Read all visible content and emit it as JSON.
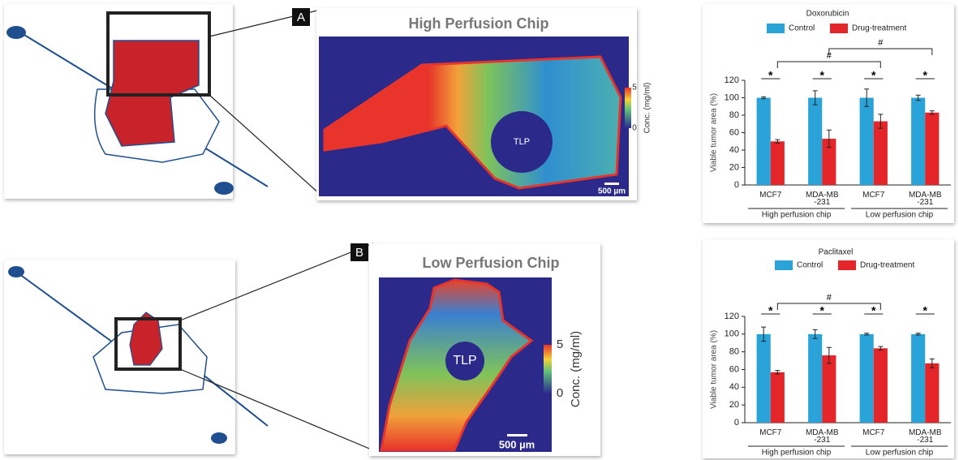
{
  "panels": [
    {
      "label": "A",
      "title": "High Perfusion Chip",
      "tlp": "TLP",
      "colorbar_ticks": [
        0,
        5
      ],
      "colorbar_label": "Conc. (mg/ml)",
      "scale": "500 µm"
    },
    {
      "label": "B",
      "title": "Low Perfusion Chip",
      "tlp": "TLP",
      "colorbar_ticks": [
        0,
        5
      ],
      "colorbar_label": "Conc. (mg/ml)",
      "scale": "500 µm"
    }
  ],
  "chart_data": [
    {
      "type": "bar",
      "title": "Doxorubicin",
      "ylabel": "Viable tumor area (%)",
      "categories": [
        "MCF7",
        "MDA-MB\n-231",
        "MCF7",
        "MDA-MB\n-231"
      ],
      "groups": [
        "High perfusion chip",
        "Low perfusion chip"
      ],
      "series": [
        {
          "name": "Control",
          "color": "#2aa3d8",
          "values": [
            100,
            100,
            100,
            100
          ],
          "errors": [
            1,
            8,
            10,
            3
          ]
        },
        {
          "name": "Drug-treatment",
          "color": "#e4262b",
          "values": [
            50,
            53,
            73,
            83
          ],
          "errors": [
            2,
            10,
            8,
            2
          ]
        }
      ],
      "annotations": [
        "*",
        "*",
        "*",
        "*",
        "#",
        "#"
      ],
      "ylim": [
        0,
        120
      ],
      "yticks": [
        0,
        20,
        40,
        60,
        80,
        100,
        120
      ]
    },
    {
      "type": "bar",
      "title": "Paclitaxel",
      "ylabel": "Viable tumor area (%)",
      "categories": [
        "MCF7",
        "MDA-MB\n-231",
        "MCF7",
        "MDA-MB\n-231"
      ],
      "groups": [
        "High perfusion chip",
        "Low perfusion chip"
      ],
      "series": [
        {
          "name": "Control",
          "color": "#2aa3d8",
          "values": [
            100,
            100,
            100,
            100
          ],
          "errors": [
            8,
            5,
            1,
            1
          ]
        },
        {
          "name": "Drug-treatment",
          "color": "#e4262b",
          "values": [
            57,
            76,
            84,
            67
          ],
          "errors": [
            2,
            9,
            2,
            5
          ]
        }
      ],
      "annotations": [
        "*",
        "*",
        "*",
        "*",
        "#"
      ],
      "ylim": [
        0,
        120
      ],
      "yticks": [
        0,
        20,
        40,
        60,
        80,
        100,
        120
      ]
    }
  ]
}
